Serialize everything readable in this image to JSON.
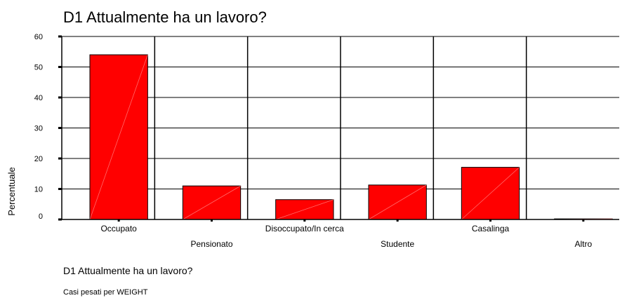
{
  "chart_data": {
    "type": "bar",
    "title": "D1 Attualmente ha un lavoro?",
    "ylabel": "Percentuale",
    "xlabel": "D1 Attualmente ha un lavoro?",
    "categories": [
      "Occupato",
      "Pensionato",
      "Disoccupato/In cerca",
      "Studente",
      "Casalinga",
      "Altro"
    ],
    "values": [
      54,
      11,
      6.5,
      11.3,
      17.1,
      0.2
    ],
    "ylim": [
      0,
      60
    ],
    "yticks": [
      0,
      10,
      20,
      30,
      40,
      50,
      60
    ],
    "grid": true,
    "bar_color": "#ff0000"
  },
  "footer": {
    "note": "Casi pesati per WEIGHT"
  }
}
